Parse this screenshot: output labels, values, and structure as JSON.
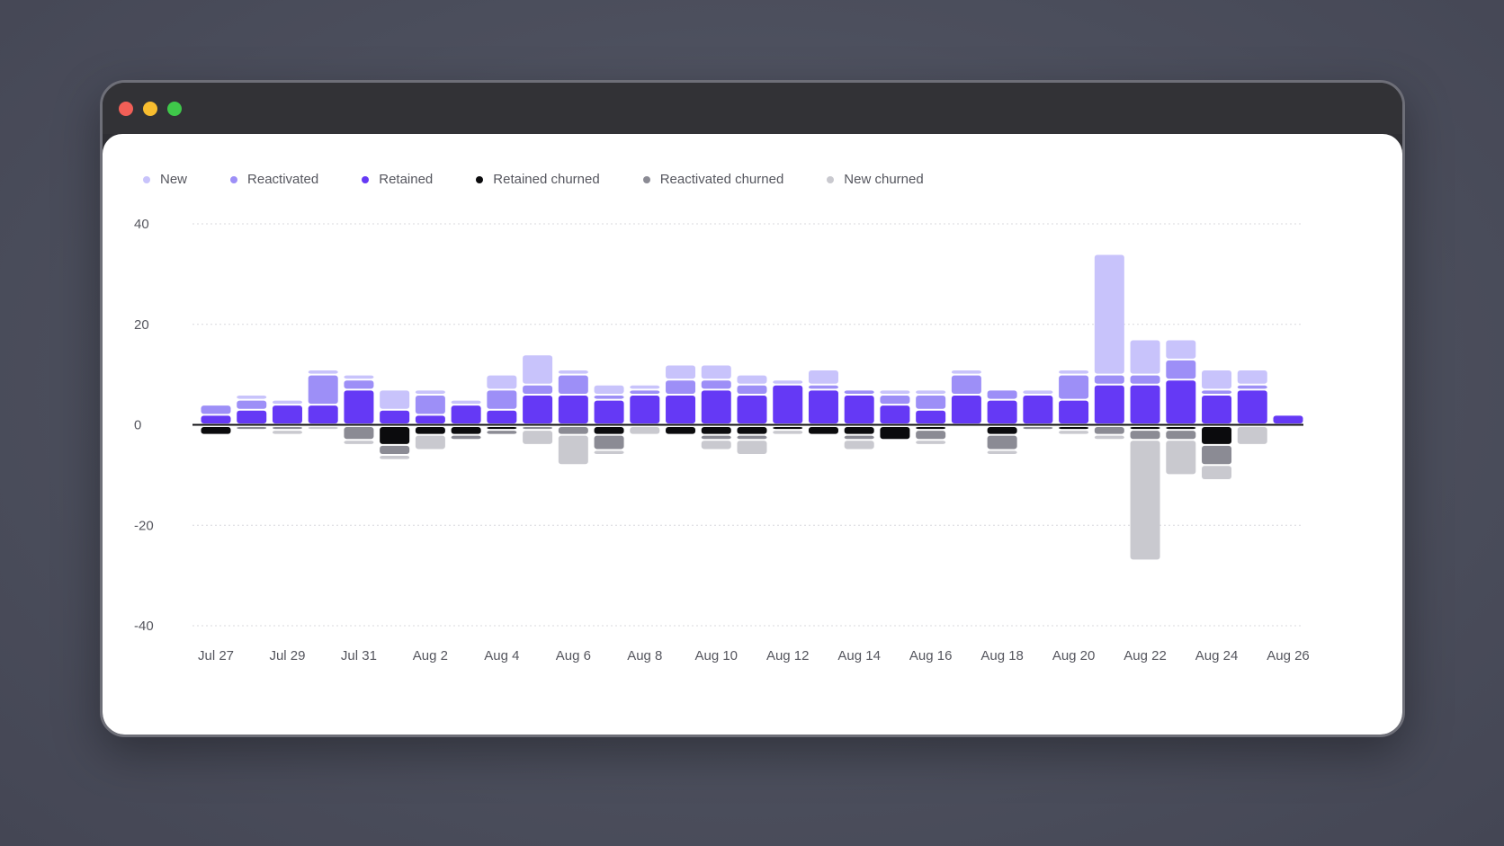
{
  "window": {
    "controls": [
      {
        "name": "close",
        "color": "#f25f57"
      },
      {
        "name": "minimize",
        "color": "#f8bd2f"
      },
      {
        "name": "maximize",
        "color": "#3fc84a"
      }
    ]
  },
  "colors": {
    "new": "#c8c3fb",
    "reactivated": "#9d8ff7",
    "retained": "#6539f5",
    "retained_churned": "#0b0b0d",
    "reactivated_churned": "#8b8b94",
    "new_churned": "#c9c9cf"
  },
  "chart_data": {
    "type": "bar",
    "stacked": true,
    "grid": true,
    "legend_position": "top-left",
    "ylim": [
      -40,
      40
    ],
    "yticks": [
      40,
      20,
      0,
      -20,
      -40
    ],
    "categories": [
      "Jul 27",
      "Jul 28",
      "Jul 29",
      "Jul 30",
      "Jul 31",
      "Aug 1",
      "Aug 2",
      "Aug 3",
      "Aug 4",
      "Aug 5",
      "Aug 6",
      "Aug 7",
      "Aug 8",
      "Aug 9",
      "Aug 10",
      "Aug 11",
      "Aug 12",
      "Aug 13",
      "Aug 14",
      "Aug 15",
      "Aug 16",
      "Aug 17",
      "Aug 18",
      "Aug 19",
      "Aug 20",
      "Aug 21",
      "Aug 22",
      "Aug 23",
      "Aug 24",
      "Aug 25",
      "Aug 26"
    ],
    "xtick_labels": [
      "Jul 27",
      "Jul 29",
      "Jul 31",
      "Aug 2",
      "Aug 4",
      "Aug 6",
      "Aug 8",
      "Aug 10",
      "Aug 12",
      "Aug 14",
      "Aug 16",
      "Aug 18",
      "Aug 20",
      "Aug 22",
      "Aug 24",
      "Aug 26"
    ],
    "series": [
      {
        "name": "New",
        "key": "new",
        "values": [
          0,
          1,
          1,
          1,
          1,
          4,
          1,
          1,
          3,
          6,
          1,
          2,
          1,
          3,
          3,
          2,
          1,
          3,
          0,
          1,
          1,
          1,
          0,
          1,
          1,
          24,
          7,
          4,
          4,
          3,
          0
        ]
      },
      {
        "name": "Reactivated",
        "key": "reactivated",
        "values": [
          2,
          2,
          0,
          6,
          2,
          0,
          4,
          0,
          4,
          2,
          4,
          1,
          1,
          3,
          2,
          2,
          0,
          1,
          1,
          2,
          3,
          4,
          2,
          0,
          5,
          2,
          2,
          4,
          1,
          1,
          0
        ]
      },
      {
        "name": "Retained",
        "key": "retained",
        "values": [
          2,
          3,
          4,
          4,
          7,
          3,
          2,
          4,
          3,
          6,
          6,
          5,
          6,
          6,
          7,
          6,
          8,
          7,
          6,
          4,
          3,
          6,
          5,
          6,
          5,
          8,
          8,
          9,
          6,
          7,
          2
        ]
      },
      {
        "name": "Retained churned",
        "key": "retained_churned",
        "values": [
          -2,
          0,
          0,
          0,
          0,
          -4,
          -2,
          -2,
          -1,
          0,
          0,
          -2,
          0,
          -2,
          -2,
          -2,
          -1,
          -2,
          -2,
          -3,
          -1,
          0,
          -2,
          0,
          -1,
          0,
          -1,
          -1,
          -4,
          0,
          0
        ]
      },
      {
        "name": "Reactivated churned",
        "key": "reactivated_churned",
        "values": [
          0,
          -1,
          -1,
          0,
          -3,
          -2,
          0,
          -1,
          -1,
          -1,
          -2,
          -3,
          0,
          0,
          -1,
          -1,
          0,
          0,
          -1,
          0,
          -2,
          0,
          -3,
          -1,
          0,
          -2,
          -2,
          -2,
          -4,
          0,
          0
        ]
      },
      {
        "name": "New churned",
        "key": "new_churned",
        "values": [
          0,
          0,
          -1,
          -1,
          -1,
          -1,
          -3,
          0,
          0,
          -3,
          -6,
          -1,
          -2,
          0,
          -2,
          -3,
          -1,
          0,
          -2,
          0,
          -1,
          0,
          -1,
          0,
          -1,
          -1,
          -24,
          -7,
          -3,
          -4,
          0
        ]
      }
    ]
  }
}
